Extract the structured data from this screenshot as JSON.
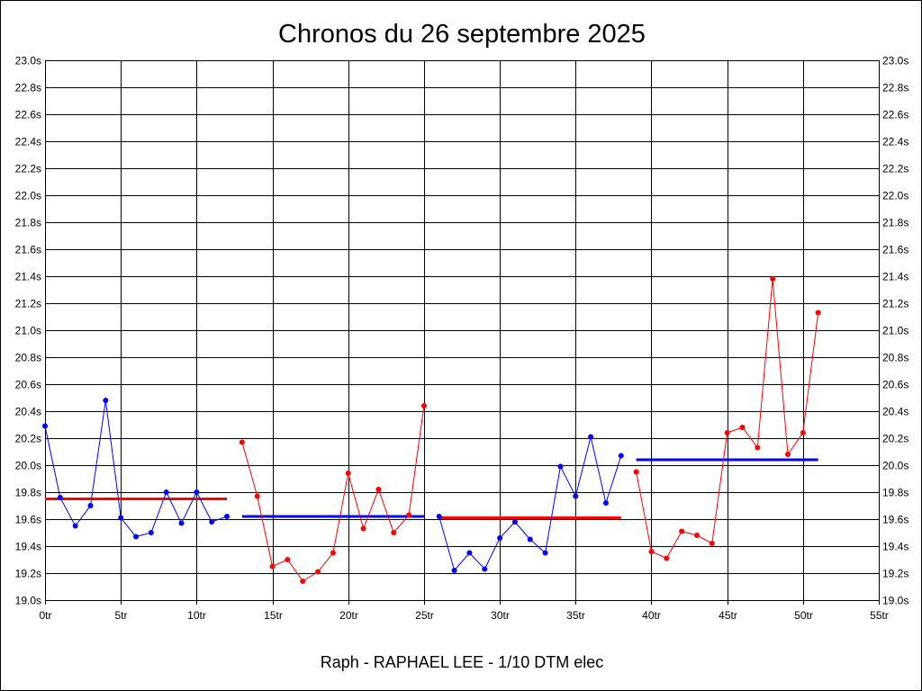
{
  "chart_data": {
    "type": "line",
    "title": "Chronos du 26 septembre 2025",
    "footer": "Raph - RAPHAEL LEE - 1/10 DTM elec",
    "xlabel": "",
    "ylabel": "",
    "xlim": [
      0,
      55
    ],
    "ylim": [
      19.0,
      23.0
    ],
    "x_ticks": [
      0,
      5,
      10,
      15,
      20,
      25,
      30,
      35,
      40,
      45,
      50,
      55
    ],
    "x_tick_labels": [
      "0tr",
      "5tr",
      "10tr",
      "15tr",
      "20tr",
      "25tr",
      "30tr",
      "35tr",
      "40tr",
      "45tr",
      "50tr",
      "55tr"
    ],
    "y_ticks": [
      19.0,
      19.2,
      19.4,
      19.6,
      19.8,
      20.0,
      20.2,
      20.4,
      20.6,
      20.8,
      21.0,
      21.2,
      21.4,
      21.6,
      21.8,
      22.0,
      22.2,
      22.4,
      22.6,
      22.8,
      23.0
    ],
    "y_tick_labels": [
      "19.0s",
      "19.2s",
      "19.4s",
      "19.6s",
      "19.8s",
      "20.0s",
      "20.2s",
      "20.4s",
      "20.6s",
      "20.8s",
      "21.0s",
      "21.2s",
      "21.4s",
      "21.6s",
      "21.8s",
      "22.0s",
      "22.2s",
      "22.4s",
      "22.6s",
      "22.8s",
      "23.0s"
    ],
    "grid": true,
    "legend": "none",
    "series": [
      {
        "color": "#0000ff",
        "x": [
          0,
          1,
          2,
          3,
          4,
          5,
          6,
          7,
          8,
          9,
          10,
          11,
          12
        ],
        "values": [
          20.29,
          19.76,
          19.55,
          19.7,
          20.48,
          19.61,
          19.47,
          19.5,
          19.8,
          19.57,
          19.8,
          19.58,
          19.62
        ],
        "average": 19.75,
        "average_color": "#ff0000"
      },
      {
        "color": "#ff0000",
        "x": [
          13,
          14,
          15,
          16,
          17,
          18,
          19,
          20,
          21,
          22,
          23,
          24,
          25
        ],
        "values": [
          20.17,
          19.77,
          19.25,
          19.3,
          19.14,
          19.21,
          19.35,
          19.94,
          19.53,
          19.82,
          19.5,
          19.63,
          20.44
        ],
        "average": 19.62,
        "average_color": "#0000ff"
      },
      {
        "color": "#0000ff",
        "x": [
          26,
          27,
          28,
          29,
          30,
          31,
          32,
          33,
          34,
          35,
          36,
          37,
          38
        ],
        "values": [
          19.62,
          19.22,
          19.35,
          19.23,
          19.46,
          19.58,
          19.45,
          19.35,
          19.99,
          19.77,
          20.21,
          19.72,
          20.07
        ],
        "average": 19.61,
        "average_color": "#ff0000"
      },
      {
        "color": "#ff0000",
        "x": [
          39,
          40,
          41,
          42,
          43,
          44,
          45,
          46,
          47,
          48,
          49,
          50,
          51
        ],
        "values": [
          19.95,
          19.36,
          19.31,
          19.51,
          19.48,
          19.42,
          20.24,
          20.28,
          20.13,
          21.38,
          20.08,
          20.24,
          21.13
        ],
        "average": 20.04,
        "average_color": "#0000ff"
      }
    ]
  }
}
